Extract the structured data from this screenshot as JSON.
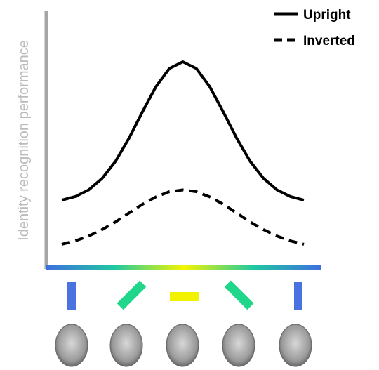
{
  "chart_data": {
    "type": "line",
    "y_label": "Identity recognition performance",
    "x": [
      0,
      10,
      20,
      30,
      40,
      50,
      60,
      70,
      80,
      90,
      100,
      110,
      120,
      130,
      140,
      150,
      160,
      170,
      180
    ],
    "xlim": [
      0,
      180
    ],
    "ylim": [
      0,
      1
    ],
    "series": [
      {
        "name": "Upright",
        "color": "#000000",
        "dash": "solid",
        "values": [
          0.26,
          0.274,
          0.3,
          0.345,
          0.412,
          0.502,
          0.605,
          0.703,
          0.774,
          0.8,
          0.774,
          0.703,
          0.605,
          0.502,
          0.412,
          0.345,
          0.3,
          0.274,
          0.26
        ]
      },
      {
        "name": "Inverted",
        "color": "#000000",
        "dash": "dashed",
        "values": [
          0.088,
          0.101,
          0.12,
          0.145,
          0.175,
          0.21,
          0.244,
          0.273,
          0.293,
          0.3,
          0.293,
          0.273,
          0.244,
          0.21,
          0.175,
          0.145,
          0.12,
          0.101,
          0.088
        ]
      }
    ],
    "legend": "top-right"
  }
}
